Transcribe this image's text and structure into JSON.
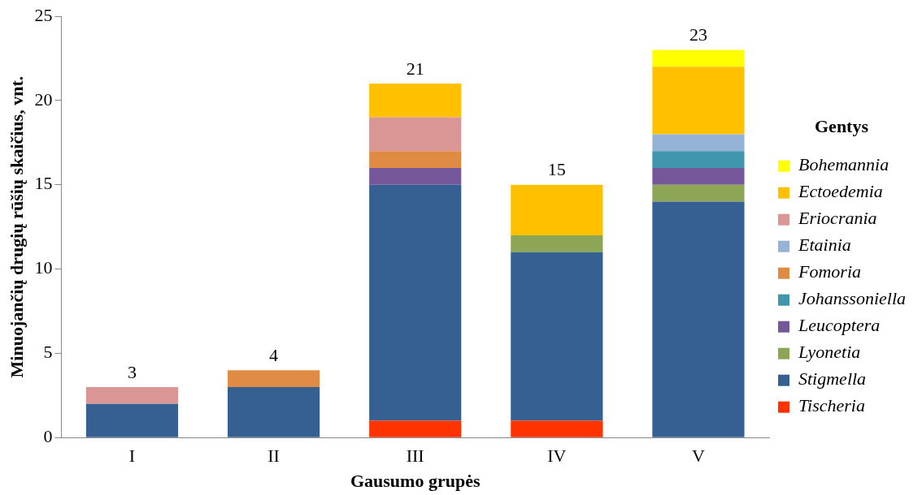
{
  "chart_data": {
    "type": "bar",
    "stacked": true,
    "xlabel": "Gausumo grupės",
    "ylabel": "Minuojančių drugių rūšių skaičius, vnt.",
    "legend_title": "Gentys",
    "legend": "right",
    "grid": false,
    "categories": [
      "I",
      "II",
      "III",
      "IV",
      "V"
    ],
    "ylim": [
      0,
      25
    ],
    "yticks": [
      0,
      5,
      10,
      15,
      20,
      25
    ],
    "totals": [
      "3",
      "4",
      "21",
      "15",
      "23"
    ],
    "series": [
      {
        "name": "Tischeria",
        "color": "#ff3300",
        "values": [
          0,
          0,
          1,
          1,
          0
        ]
      },
      {
        "name": "Stigmella",
        "color": "#366092",
        "values": [
          2,
          3,
          14,
          10,
          14
        ]
      },
      {
        "name": "Lyonetia",
        "color": "#8ca656",
        "values": [
          0,
          0,
          0,
          1,
          1
        ]
      },
      {
        "name": "Leucoptera",
        "color": "#75579a",
        "values": [
          0,
          0,
          1,
          0,
          1
        ]
      },
      {
        "name": "Johanssoniella",
        "color": "#3f96ad",
        "values": [
          0,
          0,
          0,
          0,
          1
        ]
      },
      {
        "name": "Fomoria",
        "color": "#e08b43",
        "values": [
          0,
          1,
          1,
          0,
          0
        ]
      },
      {
        "name": "Etainia",
        "color": "#95b3d7",
        "values": [
          0,
          0,
          0,
          0,
          1
        ]
      },
      {
        "name": "Eriocrania",
        "color": "#d99694",
        "values": [
          1,
          0,
          2,
          0,
          0
        ]
      },
      {
        "name": "Ectoedemia",
        "color": "#ffc000",
        "values": [
          0,
          0,
          2,
          3,
          4
        ]
      },
      {
        "name": "Bohemannia",
        "color": "#ffff00",
        "values": [
          0,
          0,
          0,
          0,
          1
        ]
      }
    ]
  }
}
